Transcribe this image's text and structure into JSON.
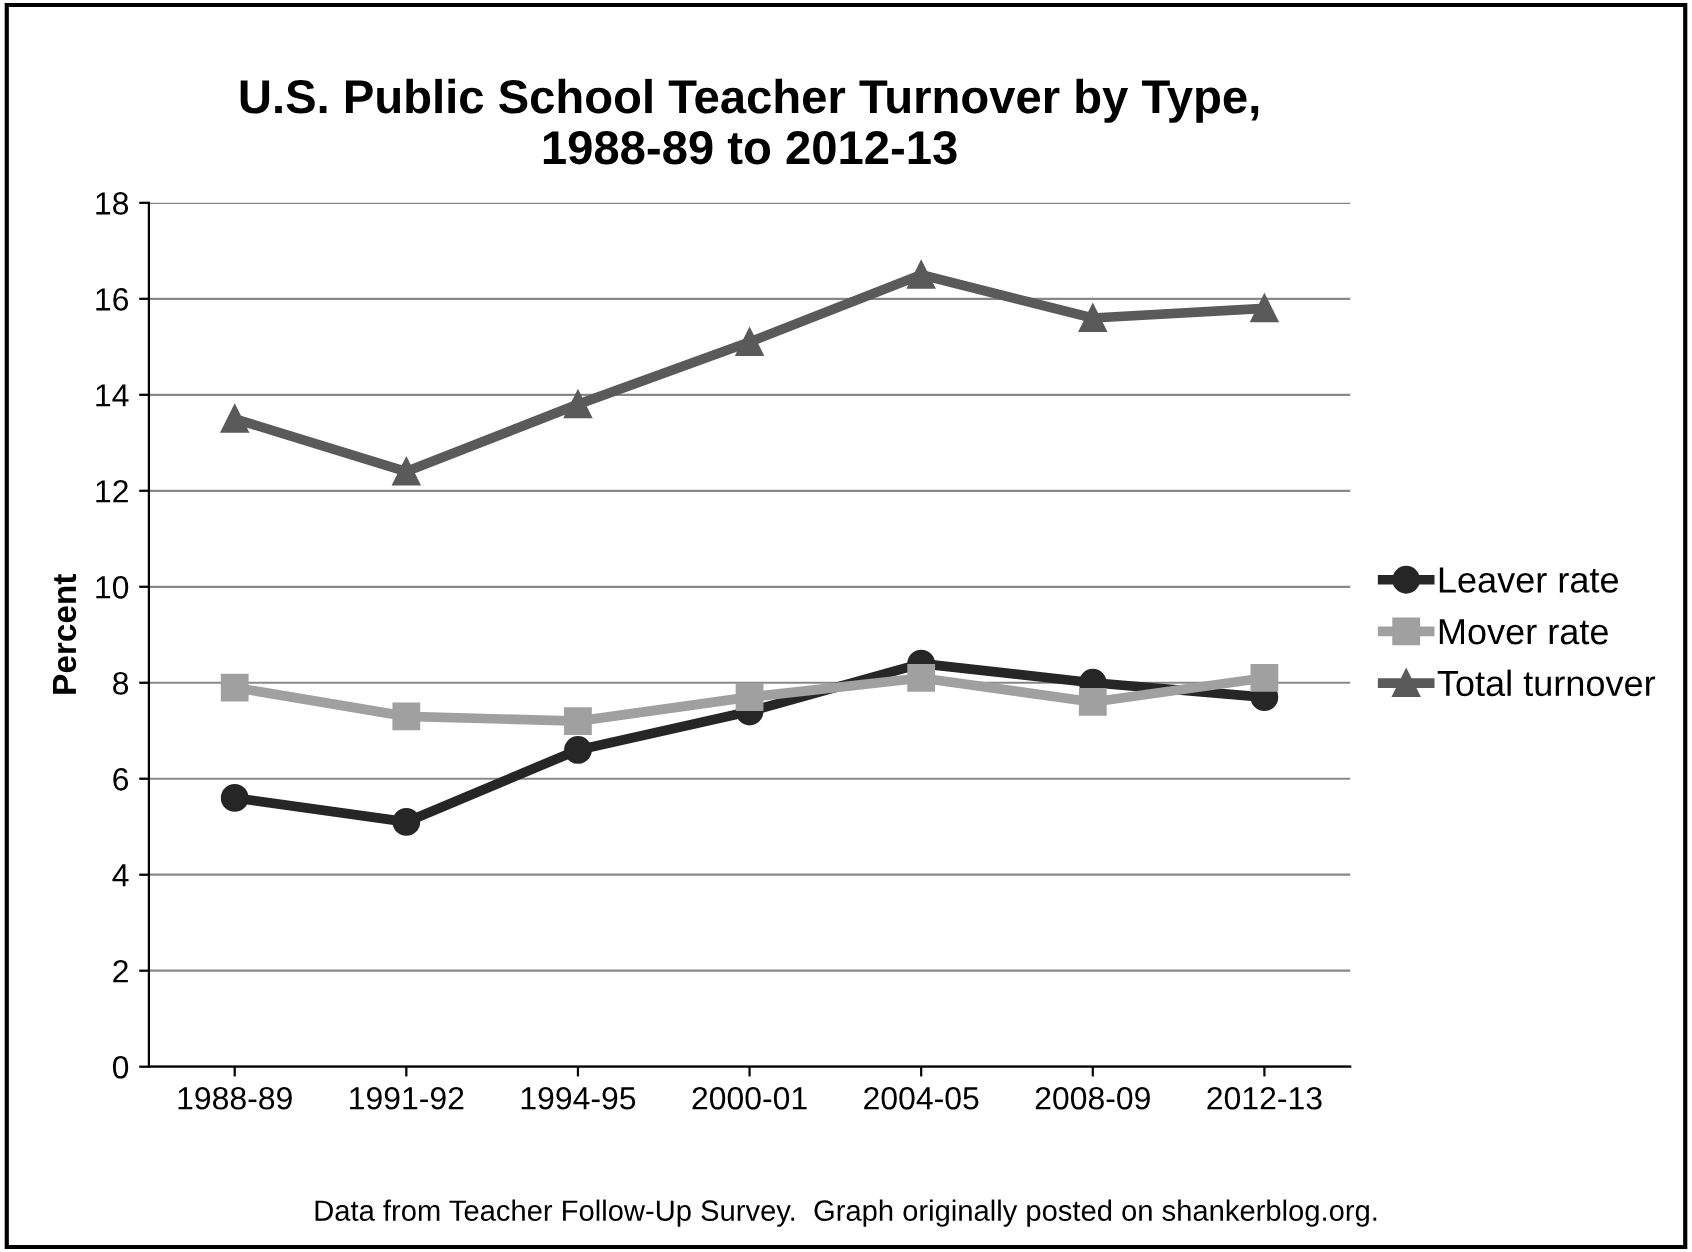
{
  "chart_data": {
    "type": "line",
    "title": "U.S. Public School Teacher Turnover by Type,\n1988-89 to 2012-13",
    "ylabel": "Percent",
    "categories": [
      "1988-89",
      "1991-92",
      "1994-95",
      "2000-01",
      "2004-05",
      "2008-09",
      "2012-13"
    ],
    "series": [
      {
        "name": "Leaver rate",
        "color": "#262626",
        "marker": "circle",
        "values": [
          5.6,
          5.1,
          6.6,
          7.4,
          8.4,
          8.0,
          7.7
        ]
      },
      {
        "name": "Mover rate",
        "color": "#a0a0a0",
        "marker": "square",
        "values": [
          7.9,
          7.3,
          7.2,
          7.7,
          8.1,
          7.6,
          8.1
        ]
      },
      {
        "name": "Total turnover",
        "color": "#5a5a5a",
        "marker": "triangle",
        "values": [
          13.5,
          12.4,
          13.8,
          15.1,
          16.5,
          15.6,
          15.8
        ]
      }
    ],
    "ylim": [
      0,
      18
    ],
    "yticks": [
      0,
      2,
      4,
      6,
      8,
      10,
      12,
      14,
      16,
      18
    ],
    "grid": "y",
    "legend": "right",
    "line_style": "solid",
    "annotations": [
      "Data from Teacher Follow-Up Survey.  Graph originally posted on shankerblog.org."
    ]
  }
}
